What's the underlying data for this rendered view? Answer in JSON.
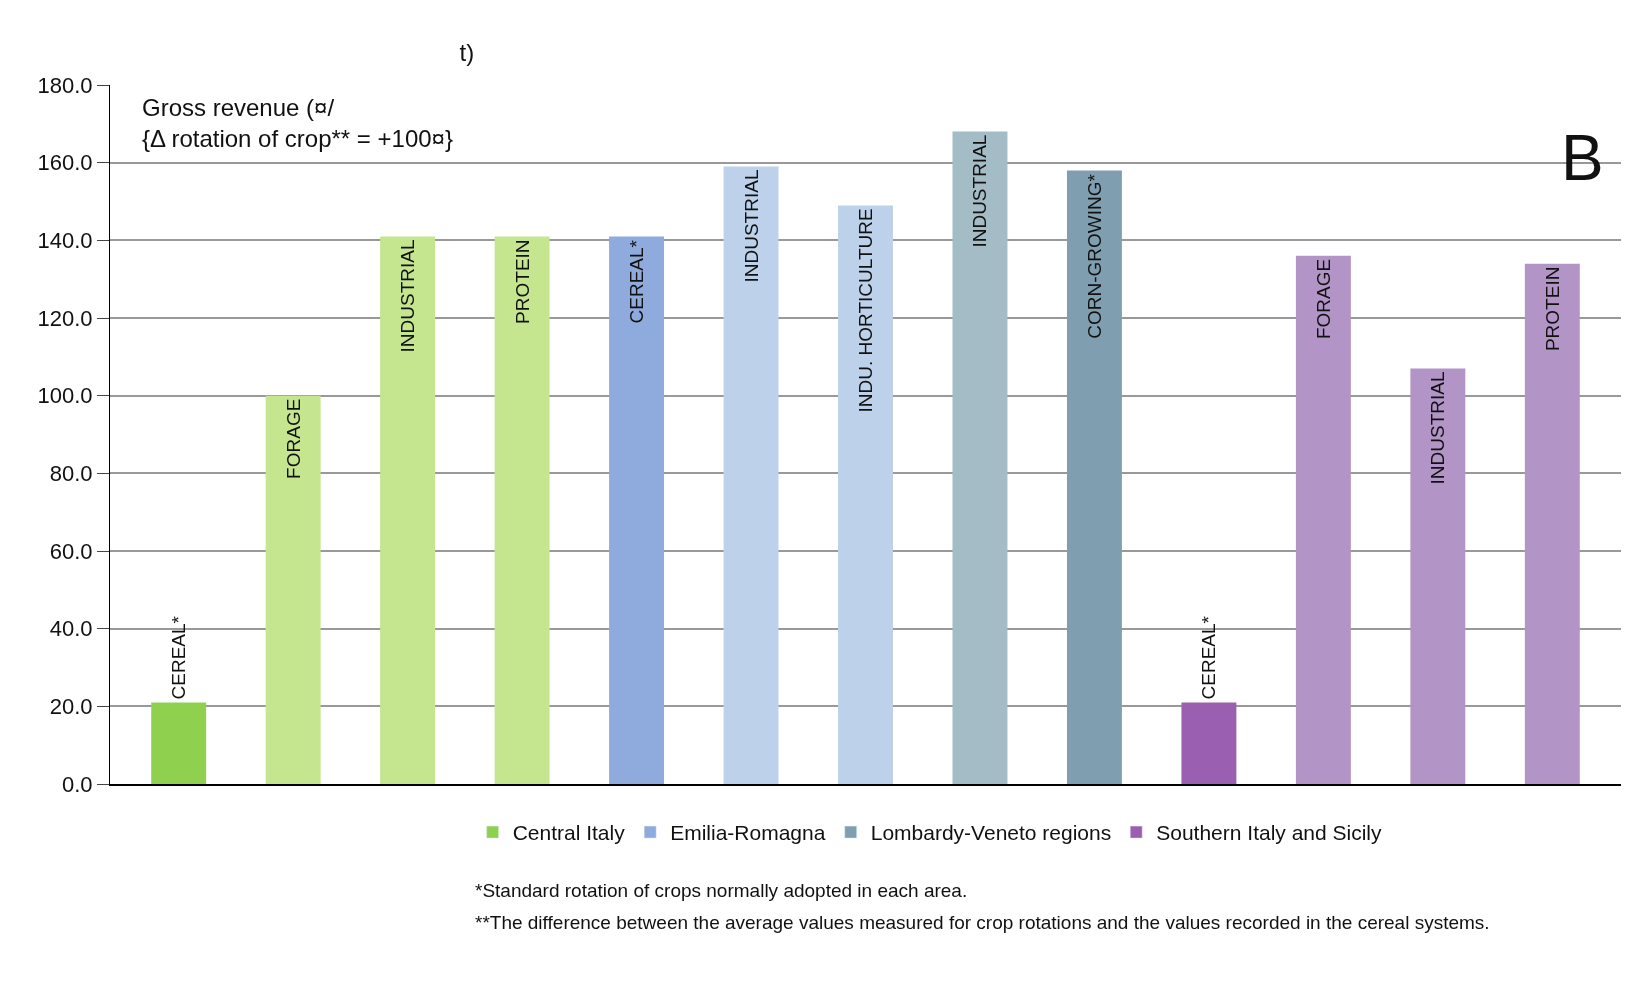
{
  "chart_data": {
    "type": "bar",
    "title": "t)",
    "categories": [
      "CEREAL*",
      "FORAGE",
      "INDUSTRIAL",
      "PROTEIN",
      "CEREAL*",
      "INDUSTRIAL",
      "INDU. HORTICULTURE",
      "INDUSTRIAL",
      "CORN-GROWING*",
      "CEREAL*",
      "FORAGE",
      "INDUSTRIAL",
      "PROTEIN"
    ],
    "series": [
      {
        "name": "Central Italy",
        "color": "#8fd14f",
        "colors": [
          "#8fd14f",
          "#c5e68f",
          "#c5e68f",
          "#c5e68f",
          null,
          null,
          null,
          null,
          null,
          null,
          null,
          null,
          null
        ],
        "values": [
          21,
          100,
          141,
          141,
          null,
          null,
          null,
          null,
          null,
          null,
          null,
          null,
          null
        ]
      },
      {
        "name": "Emilia-Romagna",
        "color": "#8faadc",
        "colors": [
          null,
          null,
          null,
          null,
          "#8faadc",
          "#bdd1ea",
          "#bdd1ea",
          null,
          null,
          null,
          null,
          null,
          null
        ],
        "values": [
          null,
          null,
          null,
          null,
          141,
          159,
          149,
          null,
          null,
          null,
          null,
          null,
          null
        ]
      },
      {
        "name": "Lombardy-Veneto regions",
        "color": "#7f9fb0",
        "colors": [
          null,
          null,
          null,
          null,
          null,
          null,
          null,
          "#a3bcc5",
          "#7f9fb0",
          null,
          null,
          null,
          null
        ],
        "values": [
          null,
          null,
          null,
          null,
          null,
          null,
          null,
          168,
          158,
          null,
          null,
          null,
          null
        ]
      },
      {
        "name": "Southern Italy and Sicily",
        "color": "#9a5fb0",
        "colors": [
          null,
          null,
          null,
          null,
          null,
          null,
          null,
          null,
          null,
          "#9a5fb0",
          "#b294c7",
          "#b294c7",
          "#b294c7"
        ],
        "values": [
          null,
          null,
          null,
          null,
          null,
          null,
          null,
          null,
          null,
          21,
          136,
          107,
          134
        ]
      }
    ],
    "ylim": [
      0,
      180
    ],
    "yticks": [
      {
        "value": 0,
        "label": "0.0"
      },
      {
        "value": 20,
        "label": "20.0"
      },
      {
        "value": 40,
        "label": "40.0"
      },
      {
        "value": 60,
        "label": "60.0"
      },
      {
        "value": 80,
        "label": "80.0"
      },
      {
        "value": 100,
        "label": "100.0"
      },
      {
        "value": 120,
        "label": "120.0"
      },
      {
        "value": 140,
        "label": "140.0"
      },
      {
        "value": 160,
        "label": "160.0"
      },
      {
        "value": 180,
        "label": "180.0"
      }
    ],
    "grid": "y",
    "legend": "bottom",
    "tick_labels": "y",
    "annotations": [
      "Gross revenue (¤/\n{Δ rotation of crop** = +100¤}",
      "B",
      "*Standard rotation of crops normally adopted in each area.",
      "**The difference between the average values measured for crop rotations and the values recorded in the cereal systems."
    ]
  }
}
